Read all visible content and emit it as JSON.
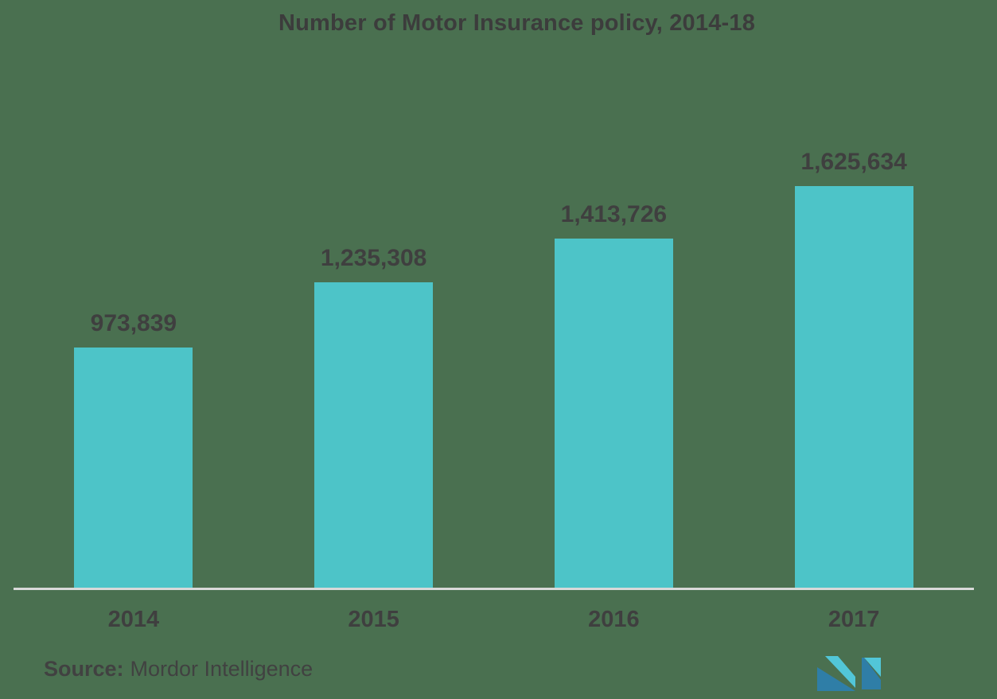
{
  "chart_data": {
    "type": "bar",
    "title": "Number of Motor Insurance policy, 2014-18",
    "categories": [
      "2014",
      "2015",
      "2016",
      "2017"
    ],
    "values": [
      973839,
      1235308,
      1413726,
      1625634
    ],
    "value_labels": [
      "973,839",
      "1,235,308",
      "1,413,726",
      "1,625,634"
    ],
    "xlabel": "",
    "ylabel": "",
    "grid": false,
    "legend": false,
    "bar_color": "#4DC4C8"
  },
  "source": {
    "label": "Source:",
    "name": "Mordor Intelligence"
  },
  "logo": {
    "alt": "mordor-intelligence-logo",
    "blue": "#2F7EA7",
    "teal": "#52C6D8"
  },
  "colors": {
    "background": "#4A7050",
    "bar": "#4DC4C8",
    "title_text": "#3C3C3C",
    "label_text": "#3F3F3F",
    "axis_line": "#D9D9D9"
  }
}
